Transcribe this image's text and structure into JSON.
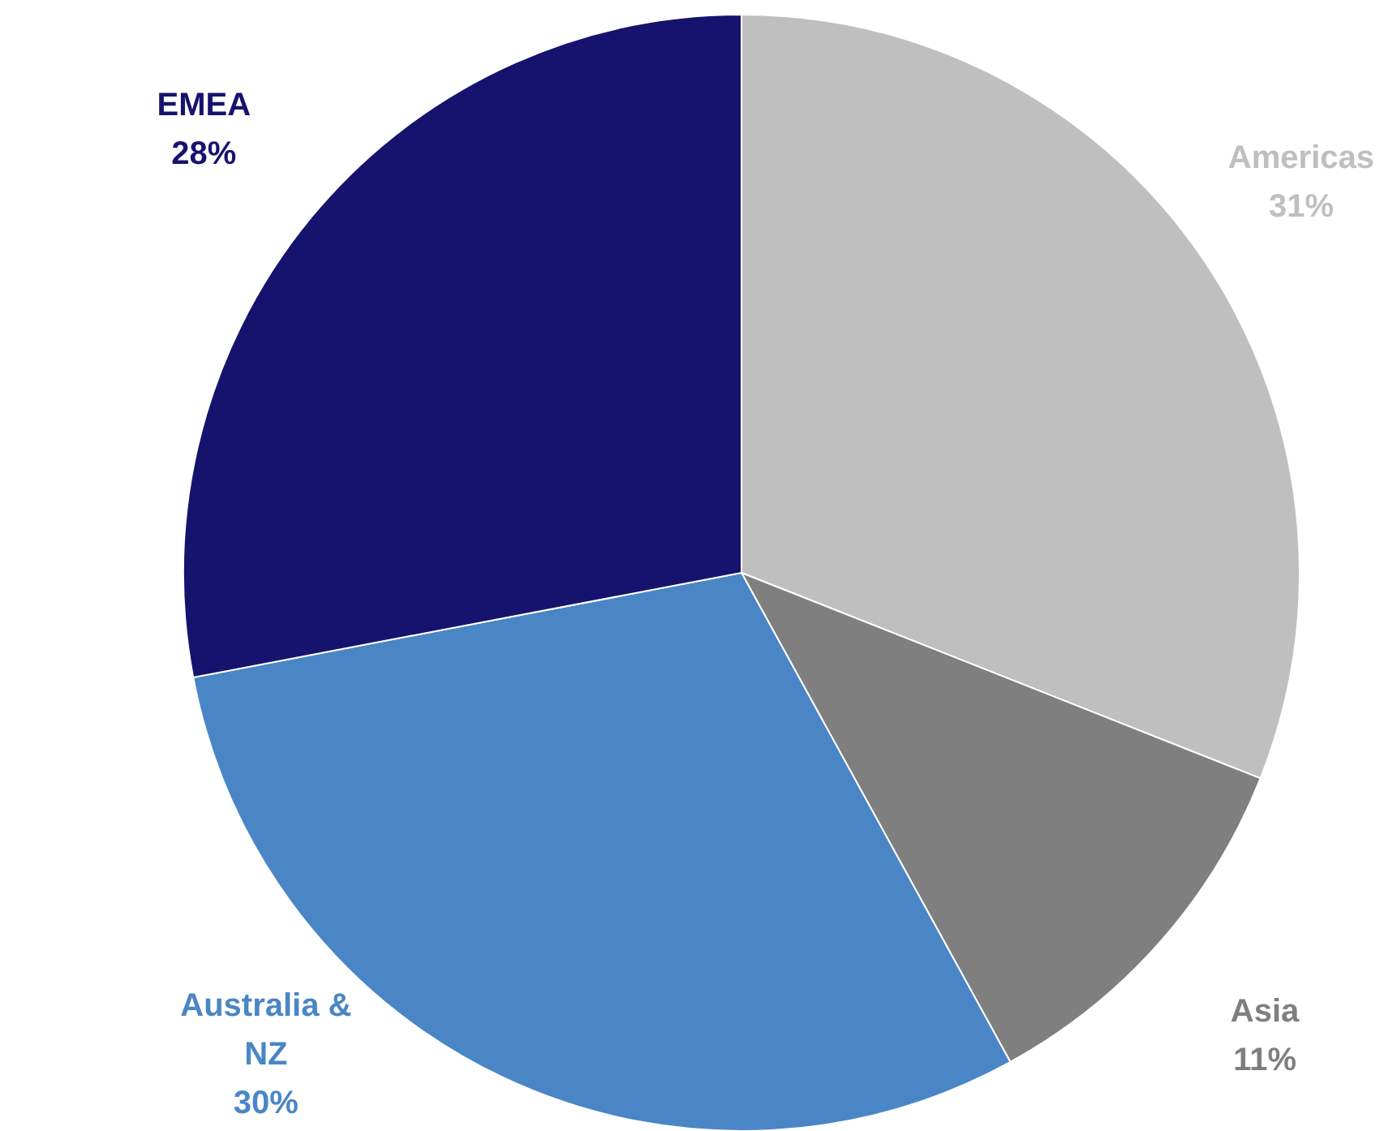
{
  "chart_data": {
    "type": "pie",
    "categories": [
      "Americas",
      "Asia",
      "Australia & NZ",
      "EMEA"
    ],
    "values": [
      31,
      11,
      30,
      28
    ],
    "value_labels": [
      "31%",
      "11%",
      "30%",
      "28%"
    ],
    "colors": [
      "#bfbfbf",
      "#7f7f7f",
      "#4a86c6",
      "#16136e"
    ],
    "legend": false
  }
}
